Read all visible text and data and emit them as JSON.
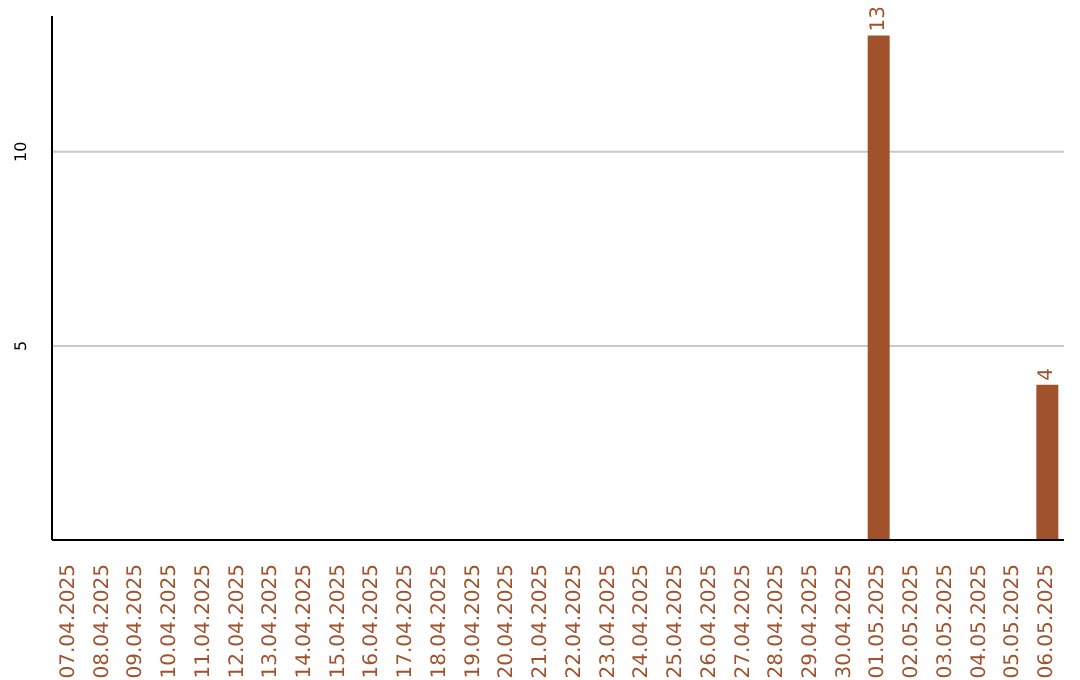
{
  "chart_data": {
    "type": "bar",
    "categories": [
      "07.04.2025",
      "08.04.2025",
      "09.04.2025",
      "10.04.2025",
      "11.04.2025",
      "12.04.2025",
      "13.04.2025",
      "14.04.2025",
      "15.04.2025",
      "16.04.2025",
      "17.04.2025",
      "18.04.2025",
      "19.04.2025",
      "20.04.2025",
      "21.04.2025",
      "22.04.2025",
      "23.04.2025",
      "24.04.2025",
      "25.04.2025",
      "26.04.2025",
      "27.04.2025",
      "28.04.2025",
      "29.04.2025",
      "30.04.2025",
      "01.05.2025",
      "02.05.2025",
      "03.05.2025",
      "04.05.2025",
      "05.05.2025",
      "06.05.2025"
    ],
    "values": [
      0,
      0,
      0,
      0,
      0,
      0,
      0,
      0,
      0,
      0,
      0,
      0,
      0,
      0,
      0,
      0,
      0,
      0,
      0,
      0,
      0,
      0,
      0,
      0,
      13,
      0,
      0,
      0,
      0,
      4
    ],
    "value_labels": [
      null,
      null,
      null,
      null,
      null,
      null,
      null,
      null,
      null,
      null,
      null,
      null,
      null,
      null,
      null,
      null,
      null,
      null,
      null,
      null,
      null,
      null,
      null,
      null,
      "13",
      null,
      null,
      null,
      null,
      "4"
    ],
    "color": "#a0522d",
    "ylim": [
      0,
      13.5
    ],
    "yticks": [
      5,
      10
    ],
    "grid": "y"
  }
}
